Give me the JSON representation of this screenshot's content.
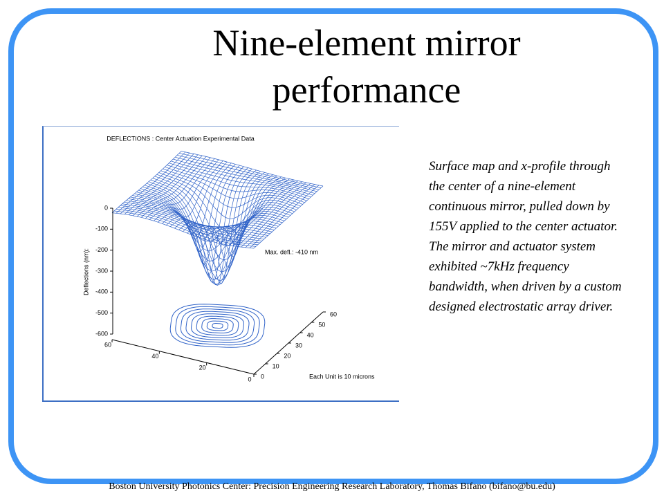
{
  "slide": {
    "title": "Nine-element mirror performance",
    "caption": "Surface map and x-profile through the center of a nine-element continuous mirror, pulled down by 155V applied to the center actuator. The mirror and actuator system exhibited ~7kHz frequency bandwidth, when driven by a custom designed electrostatic array driver.",
    "footer": "Boston University Photonics Center: Precision Engineering Research Laboratory, Thomas Bifano (bifano@bu.edu)"
  },
  "figure": {
    "title": "DEFLECTIONS :  Center Actuation Experimental Data",
    "z_axis_label": "Deflections (nm):",
    "annotation": "Max. defl.: -410 nm",
    "unit_note": "Each Unit is 10 microns",
    "z_ticks": [
      "0",
      "-100",
      "-200",
      "-300",
      "-400",
      "-500",
      "-600"
    ],
    "x_ticks": [
      "60",
      "40",
      "20",
      "0"
    ],
    "y_ticks": [
      "0",
      "10",
      "20",
      "30",
      "40",
      "50",
      "60"
    ]
  }
}
